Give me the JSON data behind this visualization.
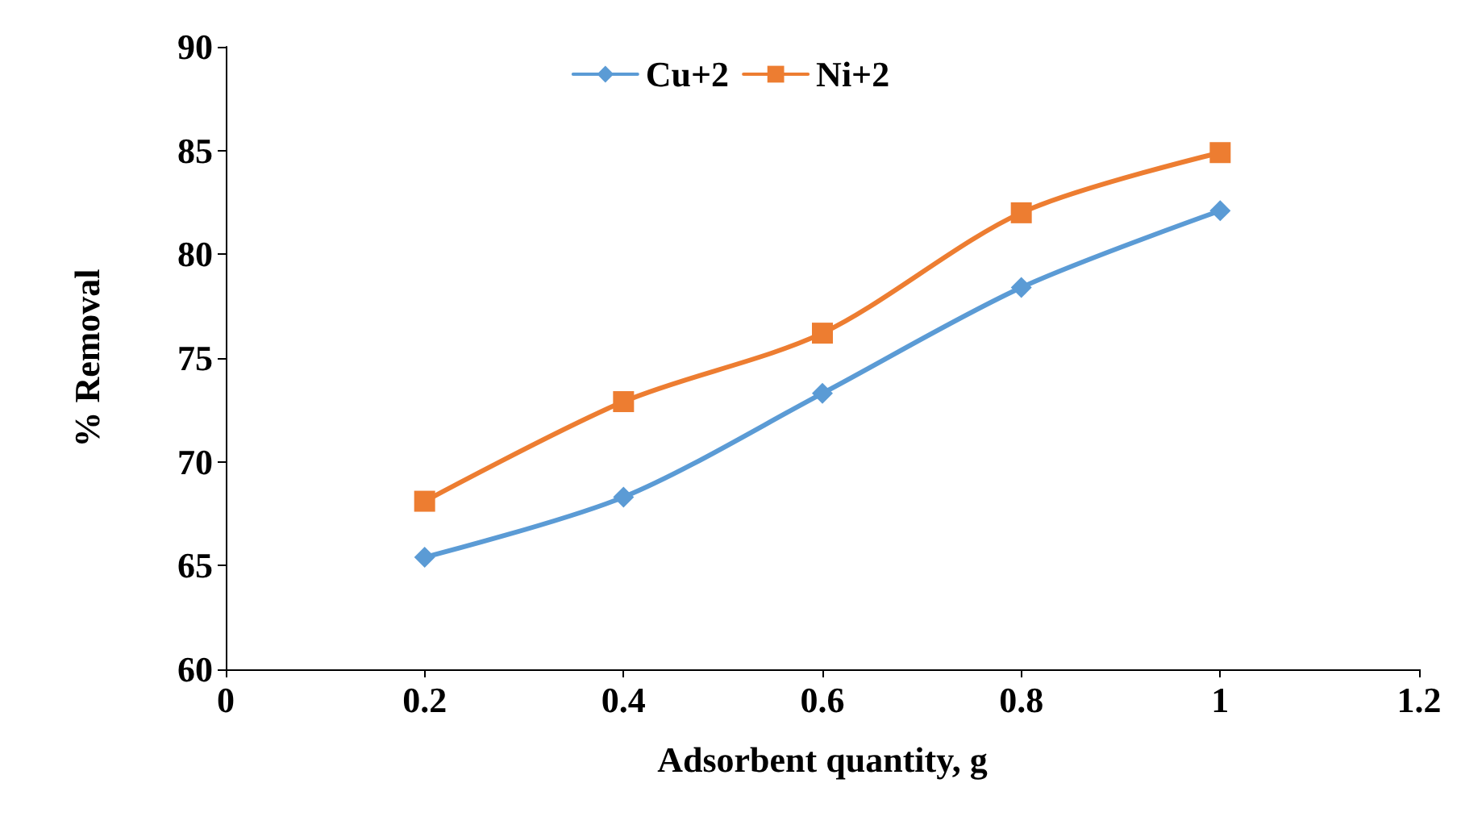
{
  "chart_data": {
    "type": "line",
    "xlabel": "Adsorbent quantity, g",
    "ylabel": "% Removal",
    "x": [
      0.2,
      0.4,
      0.6,
      0.8,
      1
    ],
    "series": [
      {
        "name": "Cu+2",
        "color": "#5b9bd5",
        "marker": "diamond",
        "values": [
          65.4,
          68.3,
          73.3,
          78.4,
          82.1
        ]
      },
      {
        "name": "Ni+2",
        "color": "#ed7d31",
        "marker": "square",
        "values": [
          68.1,
          72.9,
          76.2,
          82.0,
          84.9
        ]
      }
    ],
    "xlim": [
      0,
      1.2
    ],
    "xticks": [
      0,
      0.2,
      0.4,
      0.6,
      0.8,
      1,
      1.2
    ],
    "ylim": [
      60,
      90
    ],
    "yticks": [
      60,
      65,
      70,
      75,
      80,
      85,
      90
    ],
    "grid": false,
    "legend": "top",
    "line_style": "solid"
  }
}
